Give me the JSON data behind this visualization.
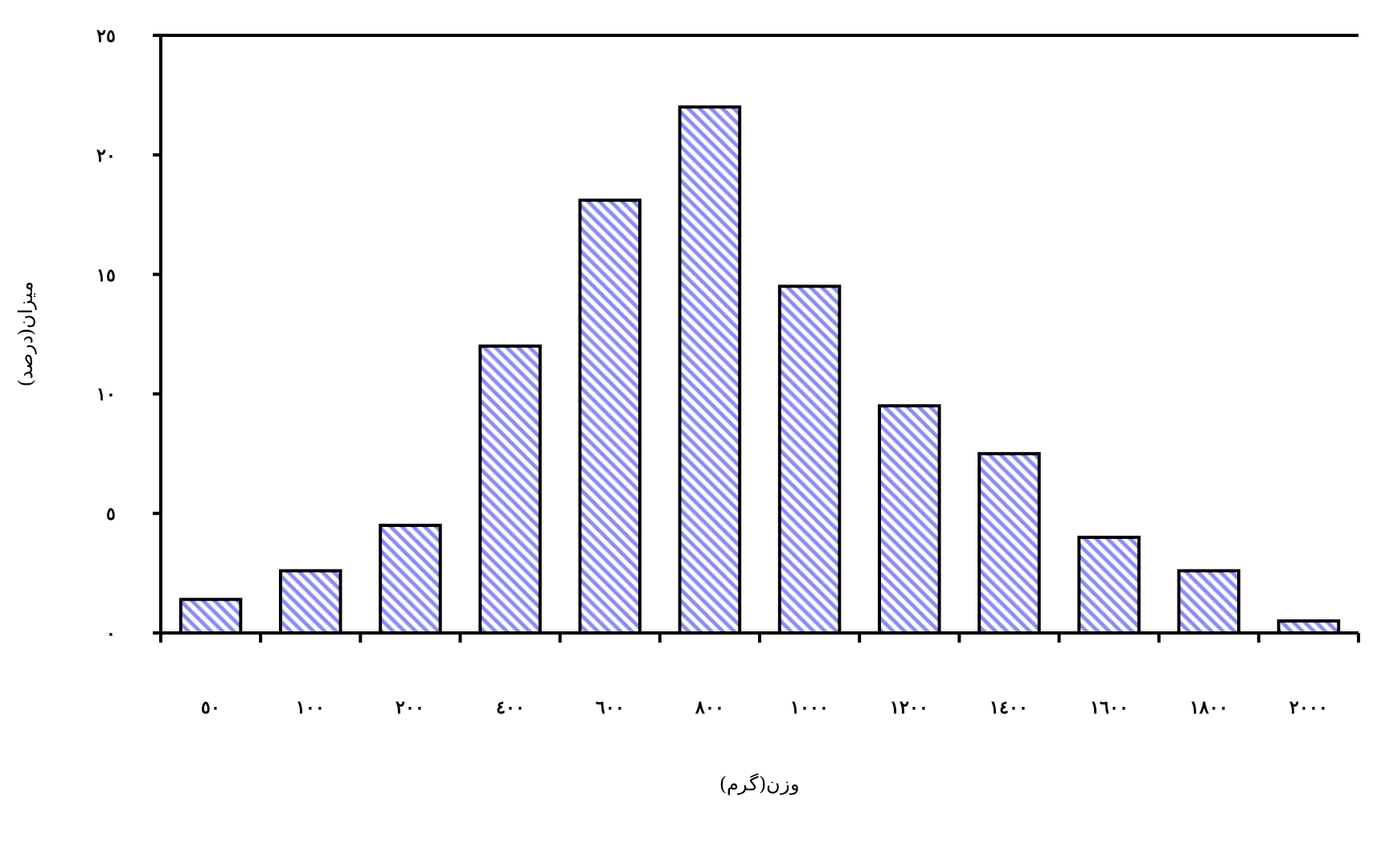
{
  "chart_data": {
    "type": "bar",
    "xlabel": "وزن(گرم)",
    "ylabel": "میزان(درصد)",
    "categories": [
      "٥٠",
      "١٠٠",
      "٢٠٠",
      "٤٠٠",
      "٦٠٠",
      "٨٠٠",
      "١٠٠٠",
      "١٢٠٠",
      "١٤٠٠",
      "١٦٠٠",
      "١٨٠٠",
      "٢٠٠٠"
    ],
    "values": [
      1.4,
      2.6,
      4.5,
      12.0,
      18.1,
      22.0,
      14.5,
      9.5,
      7.5,
      4.0,
      2.6,
      0.5
    ],
    "color": "#8c8cf0",
    "ylim": [
      0,
      25
    ],
    "yticks": [
      {
        "value": 0,
        "label": "٠"
      },
      {
        "value": 5,
        "label": "٥"
      },
      {
        "value": 10,
        "label": "١٠"
      },
      {
        "value": 15,
        "label": "١٥"
      },
      {
        "value": 20,
        "label": "٢٠"
      },
      {
        "value": 25,
        "label": "٢٥"
      }
    ],
    "grid": false
  }
}
